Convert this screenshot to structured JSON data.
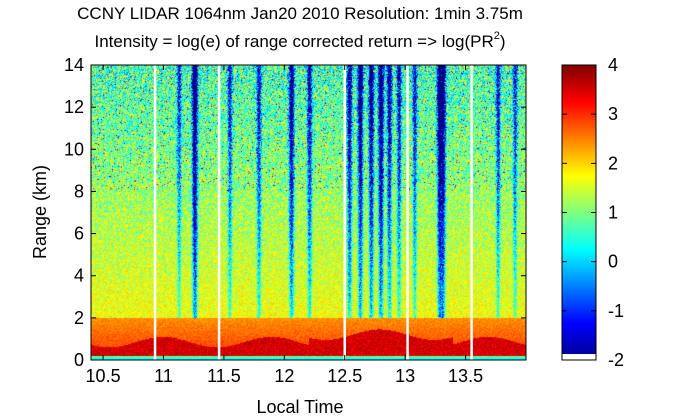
{
  "chart_data": {
    "type": "heatmap",
    "title": "CCNY LIDAR 1064nm Jan20 2010 Resolution: 1min 3.75m",
    "subtitle_prefix": "Intensity = log(e) of range corrected return => log(PR",
    "subtitle_sup": "2",
    "subtitle_suffix": ")",
    "xlabel": "Local Time",
    "ylabel": "Range (km)",
    "xlim": [
      10.4,
      14.0
    ],
    "ylim": [
      0,
      14
    ],
    "x_ticks": [
      10.5,
      11,
      11.5,
      12,
      12.5,
      13,
      13.5
    ],
    "x_tick_labels": [
      "10.5",
      "11",
      "11.5",
      "12",
      "12.5",
      "13",
      "13.5"
    ],
    "y_ticks": [
      0,
      2,
      4,
      6,
      8,
      10,
      12,
      14
    ],
    "y_tick_labels": [
      "0",
      "2",
      "4",
      "6",
      "8",
      "10",
      "12",
      "14"
    ],
    "colorbar": {
      "range": [
        -2,
        4
      ],
      "ticks": [
        -2,
        -1,
        0,
        1,
        2,
        3,
        4
      ],
      "tick_labels": [
        "-2",
        "-1",
        "0",
        "1",
        "2",
        "3",
        "4"
      ],
      "colormap": "jet"
    },
    "data_gaps_time": [
      10.93,
      11.46,
      12.5,
      13.02,
      13.55
    ],
    "boundary_layer_top_km": 2.0,
    "surface_layer_top_km": 1.0,
    "signal_dropouts": [
      {
        "time": 11.13,
        "strength": 0.45
      },
      {
        "time": 11.26,
        "strength": 0.9
      },
      {
        "time": 11.55,
        "strength": 0.5
      },
      {
        "time": 11.79,
        "strength": 0.55
      },
      {
        "time": 12.06,
        "strength": 0.75
      },
      {
        "time": 12.21,
        "strength": 0.6
      },
      {
        "time": 12.54,
        "strength": 0.7
      },
      {
        "time": 12.63,
        "strength": 0.8
      },
      {
        "time": 12.72,
        "strength": 0.75
      },
      {
        "time": 12.8,
        "strength": 0.85
      },
      {
        "time": 12.87,
        "strength": 0.65
      },
      {
        "time": 12.95,
        "strength": 0.55
      },
      {
        "time": 13.08,
        "strength": 0.5
      },
      {
        "time": 13.29,
        "strength": 1.0
      },
      {
        "time": 13.31,
        "strength": 0.95
      },
      {
        "time": 13.77,
        "strength": 0.5
      },
      {
        "time": 13.91,
        "strength": 0.45
      }
    ]
  }
}
